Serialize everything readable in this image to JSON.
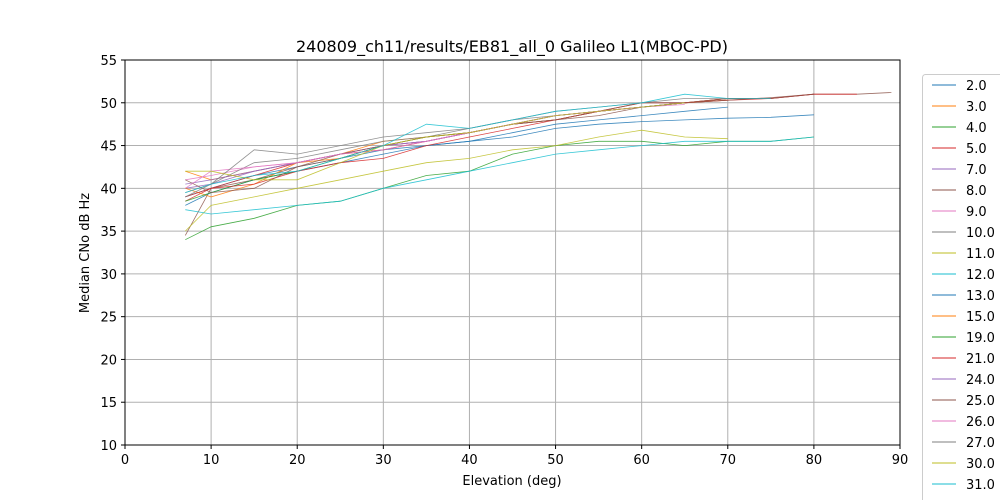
{
  "chart_data": {
    "type": "line",
    "title": "240809_ch11/results/EB81_all_0 Galileo L1(MBOC-PD)",
    "xlabel": "Elevation (deg)",
    "ylabel": "Median CNo dB Hz",
    "xlim": [
      0,
      90
    ],
    "ylim": [
      10,
      55
    ],
    "xticks": [
      0,
      10,
      20,
      30,
      40,
      50,
      60,
      70,
      80,
      90
    ],
    "yticks": [
      10,
      15,
      20,
      25,
      30,
      35,
      40,
      45,
      50,
      55
    ],
    "grid": true,
    "legend_placement": "right, outside plot",
    "x": [
      7,
      10,
      15,
      20,
      25,
      30,
      35,
      40,
      45,
      50,
      55,
      60,
      65,
      70,
      75,
      80,
      85,
      89
    ],
    "series": [
      {
        "name": "2.0",
        "color": "#1f77b4",
        "values": [
          39,
          40,
          41.5,
          42.5,
          43.5,
          44.5,
          45,
          45.5,
          46,
          47,
          47.5,
          47.8,
          48,
          48.2,
          48.3,
          48.6,
          null,
          null
        ]
      },
      {
        "name": "3.0",
        "color": "#ff7f0e",
        "values": [
          42,
          41,
          42,
          43,
          44,
          45.5,
          46,
          46.5,
          47.5,
          48,
          49,
          49.5,
          50,
          50.3,
          null,
          null,
          null,
          null
        ]
      },
      {
        "name": "4.0",
        "color": "#2ca02c",
        "values": [
          34,
          35.5,
          36.5,
          38,
          38.5,
          40,
          41.5,
          42,
          44,
          45,
          45.5,
          45.5,
          45,
          45.5,
          45.5,
          46,
          null,
          null
        ]
      },
      {
        "name": "5.0",
        "color": "#d62728",
        "values": [
          38.5,
          40,
          41.5,
          43,
          44,
          44.5,
          45.5,
          46.5,
          47.5,
          48,
          49,
          49.5,
          50,
          50.3,
          50.5,
          51,
          null,
          null
        ]
      },
      {
        "name": "7.0",
        "color": "#9467bd",
        "values": [
          40,
          40.5,
          42,
          43,
          44,
          45,
          45.5,
          46.5,
          47.5,
          48.5,
          49,
          49.5,
          50,
          null,
          null,
          null,
          null,
          null
        ]
      },
      {
        "name": "8.0",
        "color": "#8c564b",
        "values": [
          34.5,
          40,
          41,
          42.5,
          43.5,
          45,
          45.5,
          46.5,
          47.5,
          48,
          48.5,
          49.5,
          50,
          50.3,
          50.6,
          51,
          51,
          51.2
        ]
      },
      {
        "name": "9.0",
        "color": "#e377c2",
        "values": [
          41,
          41.5,
          42.5,
          43,
          44,
          45,
          45.5,
          46.5,
          47.5,
          48.5,
          49,
          49.5,
          49.8,
          null,
          null,
          null,
          null,
          null
        ]
      },
      {
        "name": "10.0",
        "color": "#7f7f7f",
        "values": [
          39.5,
          40.5,
          43,
          43.5,
          44.5,
          45.5,
          46,
          47,
          48,
          48.5,
          49,
          49.5,
          50,
          50.5,
          50.5,
          null,
          null,
          null
        ]
      },
      {
        "name": "11.0",
        "color": "#bcbd22",
        "values": [
          35,
          38,
          39,
          40,
          41,
          42,
          43,
          43.5,
          44.5,
          45,
          46,
          46.8,
          46,
          45.8,
          null,
          null,
          null,
          null
        ]
      },
      {
        "name": "12.0",
        "color": "#17becf",
        "values": [
          37.5,
          37,
          37.5,
          38,
          38.5,
          40,
          41,
          42,
          43,
          44,
          44.5,
          45,
          45.5,
          45.5,
          45.5,
          46,
          null,
          null
        ]
      },
      {
        "name": "13.0",
        "color": "#1f77b4",
        "values": [
          38,
          39.5,
          41,
          42,
          43,
          44,
          45,
          45.5,
          46.5,
          47.5,
          48,
          48.5,
          49,
          49.5,
          null,
          null,
          null,
          null
        ]
      },
      {
        "name": "15.0",
        "color": "#ff7f0e",
        "values": [
          40,
          39,
          40.5,
          43,
          43.5,
          45,
          46,
          46.5,
          47.5,
          48.5,
          49,
          49.5,
          50,
          50.5,
          50.5,
          null,
          null,
          null
        ]
      },
      {
        "name": "19.0",
        "color": "#2ca02c",
        "values": [
          38.5,
          39.5,
          41,
          42,
          43.5,
          45,
          46,
          46.5,
          47.5,
          48.5,
          49,
          49.5,
          50,
          null,
          null,
          null,
          null,
          null
        ]
      },
      {
        "name": "21.0",
        "color": "#d62728",
        "values": [
          39,
          40,
          40.5,
          42,
          43,
          43.5,
          45,
          46,
          47,
          48,
          49,
          50,
          50,
          50.5,
          50.5,
          51,
          51,
          null
        ]
      },
      {
        "name": "24.0",
        "color": "#9467bd",
        "values": [
          40.5,
          41,
          42,
          43,
          44,
          45,
          45.5,
          46.5,
          47.5,
          48.5,
          49,
          49.5,
          50,
          null,
          null,
          null,
          null,
          null
        ]
      },
      {
        "name": "25.0",
        "color": "#8c564b",
        "values": [
          41,
          39.5,
          40,
          42.5,
          44,
          45,
          46,
          46.5,
          47.5,
          48,
          49,
          50,
          50,
          50.5,
          50.5,
          51,
          null,
          null
        ]
      },
      {
        "name": "26.0",
        "color": "#e377c2",
        "values": [
          40,
          42,
          42.5,
          43,
          44,
          44.5,
          45.5,
          46.5,
          47.5,
          48.5,
          49,
          49.5,
          null,
          null,
          null,
          null,
          null,
          null
        ]
      },
      {
        "name": "27.0",
        "color": "#7f7f7f",
        "values": [
          39,
          40.5,
          44.5,
          44,
          45,
          46,
          46.5,
          47,
          48,
          49,
          49.5,
          50,
          50.5,
          50.5,
          null,
          null,
          null,
          null
        ]
      },
      {
        "name": "30.0",
        "color": "#bcbd22",
        "values": [
          42,
          42,
          41,
          41,
          43,
          45,
          46,
          46.5,
          47.5,
          48.5,
          49,
          49.5,
          50,
          null,
          null,
          null,
          null,
          null
        ]
      },
      {
        "name": "31.0",
        "color": "#17becf",
        "values": [
          39.5,
          40.5,
          41.5,
          42,
          43.5,
          45,
          47.5,
          47,
          48,
          49,
          49.5,
          50,
          51,
          50.5,
          50.5,
          null,
          null,
          null
        ]
      }
    ]
  }
}
